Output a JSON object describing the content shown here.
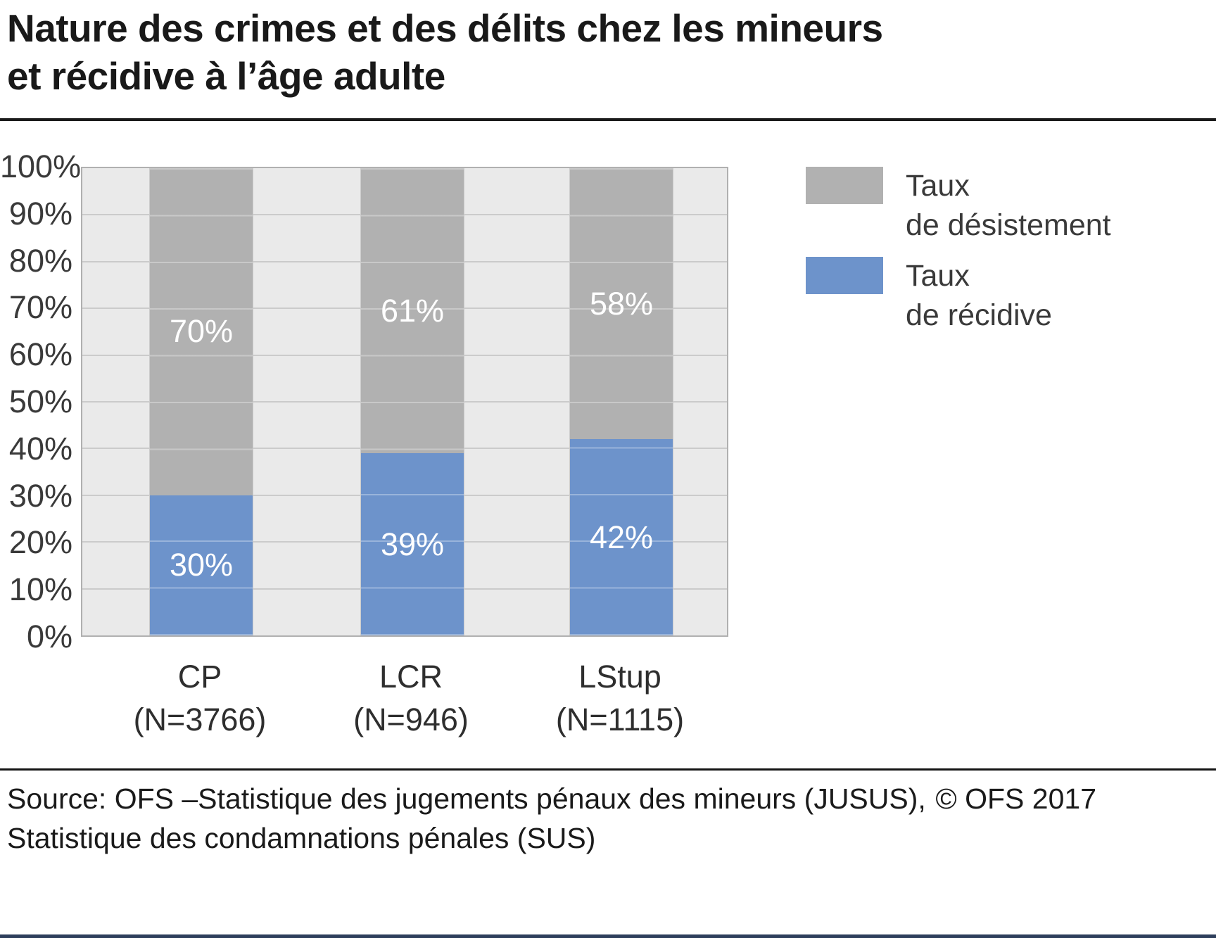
{
  "title": {
    "line1": "Nature des crimes et des délits chez les mineurs",
    "line2": "et récidive à l’âge adulte"
  },
  "chart_data": {
    "type": "bar",
    "stacked": true,
    "title": "Nature des crimes et des délits chez les mineurs et récidive à l’âge adulte",
    "categories": [
      "CP",
      "LCR",
      "LStup"
    ],
    "category_counts": [
      "(N=3766)",
      "(N=946)",
      "(N=1115)"
    ],
    "series": [
      {
        "name": "Taux de récidive",
        "color": "#6d93cb",
        "values": [
          30,
          39,
          42
        ]
      },
      {
        "name": "Taux de désistement",
        "color": "#b1b1b1",
        "values": [
          70,
          61,
          58
        ]
      }
    ],
    "value_label_suffix": "%",
    "ylim": [
      0,
      100
    ],
    "yticks": [
      0,
      10,
      20,
      30,
      40,
      50,
      60,
      70,
      80,
      90,
      100
    ],
    "ytick_suffix": "%",
    "grid": true,
    "legend_position": "right"
  },
  "legend": {
    "items": [
      {
        "lines": [
          "Taux",
          "de désistement"
        ],
        "color": "#b1b1b1"
      },
      {
        "lines": [
          "Taux",
          "de récidive"
        ],
        "color": "#6d93cb"
      }
    ]
  },
  "footer": {
    "source_line1": "Source: OFS –Statistique des jugements pénaux des mineurs (JUSUS),",
    "source_line2": "Statistique des condamnations pénales (SUS)",
    "copyright": "© OFS 2017"
  },
  "colors": {
    "recidive_blue": "#6d93cb",
    "desistement_gray": "#b1b1b1",
    "plot_background": "#eaeaea",
    "gridline": "#cbcbcb",
    "bottom_bar": "#2e3f5c"
  }
}
